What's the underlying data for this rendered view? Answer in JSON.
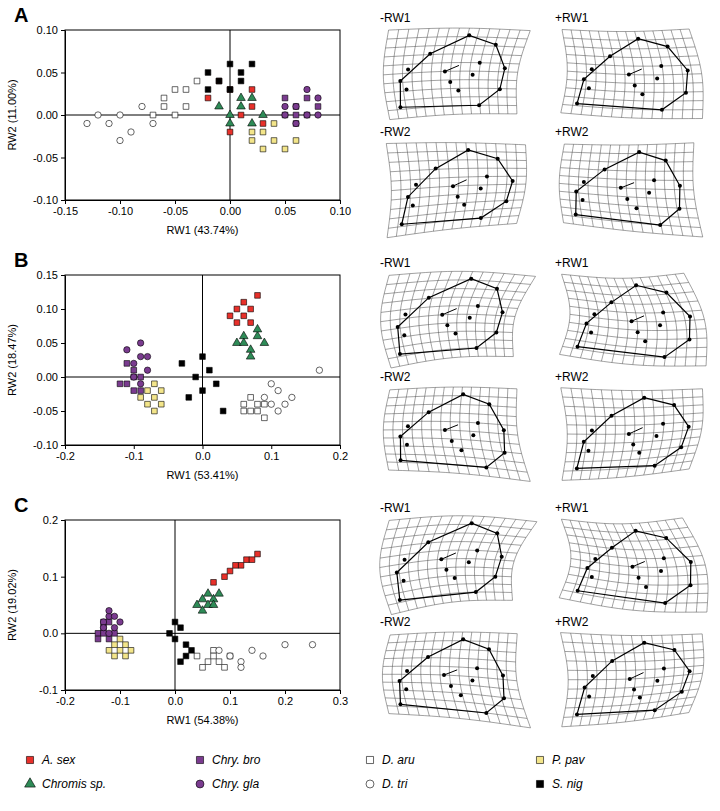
{
  "chart_data": [
    {
      "type": "scatter",
      "title": "A",
      "x_label": "RW1 (43.74%)",
      "y_label": "RW2 (11.00%)",
      "annotations": [
        "-RW1",
        "+RW1",
        "-RW2",
        "+RW2"
      ],
      "legend": "bottom",
      "xlim": [
        -0.15,
        0.1
      ],
      "xticks": [
        -0.15,
        {
          "value": -0.1,
          "label": "-0.10"
        },
        -0.05,
        {
          "value": 0,
          "label": "0.00"
        },
        0.05,
        {
          "value": 0.1,
          "label": "0.10"
        }
      ],
      "ylim": [
        -0.1,
        0.1
      ],
      "yticks": [
        {
          "value": -0.1,
          "label": "-0.10"
        },
        -0.05,
        {
          "value": 0,
          "label": "0.00"
        },
        0.05,
        {
          "value": 0.1,
          "label": "0.10"
        }
      ],
      "series": [
        {
          "name": "A. sex",
          "color": "#e8302a",
          "marker": "square",
          "x": [
            -0.02,
            0.0,
            0.01,
            0.02,
            -0.01,
            0.03,
            0.0,
            0.02
          ],
          "y": [
            0.02,
            0.03,
            0.0,
            0.01,
            0.04,
            -0.01,
            -0.02,
            0.03
          ]
        },
        {
          "name": "Chromis sp.",
          "color": "#2e8b57",
          "marker": "triangle",
          "x": [
            0.0,
            0.01,
            0.02,
            -0.01,
            0.03,
            0.01,
            0.02,
            0.0
          ],
          "y": [
            0.0,
            0.01,
            -0.01,
            0.01,
            0.0,
            0.02,
            0.02,
            -0.01
          ]
        },
        {
          "name": "Chry. bro",
          "color": "#7a3b8f",
          "marker": "square",
          "x": [
            0.05,
            0.06,
            0.07,
            0.06,
            0.08,
            0.05,
            0.07,
            0.06
          ],
          "y": [
            0.0,
            0.01,
            0.0,
            -0.01,
            0.01,
            0.02,
            0.02,
            0.0
          ]
        },
        {
          "name": "Chry. gla",
          "color": "#7a3b8f",
          "marker": "circle",
          "x": [
            0.06,
            0.07,
            0.08,
            0.05,
            0.07,
            0.06,
            0.08,
            0.05
          ],
          "y": [
            0.01,
            0.0,
            0.02,
            0.0,
            0.03,
            -0.01,
            0.0,
            0.01
          ]
        },
        {
          "name": "D. aru",
          "color": "#ffffff",
          "marker": "square",
          "x": [
            -0.07,
            -0.06,
            -0.05,
            -0.04,
            -0.03,
            -0.05,
            -0.06,
            -0.04
          ],
          "y": [
            0.0,
            0.02,
            0.03,
            0.01,
            0.04,
            0.0,
            0.01,
            0.03
          ]
        },
        {
          "name": "D. tri",
          "color": "#ffffff",
          "marker": "circle",
          "x": [
            -0.13,
            -0.11,
            -0.1,
            -0.09,
            -0.08,
            -0.1,
            -0.12,
            -0.07
          ],
          "y": [
            -0.01,
            -0.01,
            0.0,
            -0.02,
            0.01,
            -0.03,
            0.0,
            -0.01
          ]
        },
        {
          "name": "P. pav",
          "color": "#f3e58a",
          "marker": "square",
          "x": [
            0.02,
            0.03,
            0.04,
            0.03,
            0.05,
            0.02,
            0.04,
            0.06
          ],
          "y": [
            -0.03,
            -0.04,
            -0.03,
            -0.02,
            -0.04,
            -0.02,
            -0.01,
            -0.03
          ]
        },
        {
          "name": "S. nig",
          "color": "#000000",
          "marker": "square",
          "x": [
            -0.02,
            -0.01,
            0.0,
            0.01,
            0.0,
            -0.02,
            0.01,
            0.02
          ],
          "y": [
            0.05,
            0.04,
            0.06,
            0.05,
            0.03,
            0.03,
            0.04,
            0.06
          ]
        }
      ]
    },
    {
      "type": "scatter",
      "title": "B",
      "x_label": "RW1 (53.41%)",
      "y_label": "RW2 (18.47%)",
      "annotations": [
        "-RW1",
        "+RW1",
        "-RW2",
        "+RW2"
      ],
      "xlim": [
        -0.2,
        0.2
      ],
      "xticks": [
        -0.2,
        -0.1,
        {
          "value": 0,
          "label": "0.0"
        },
        0.1,
        0.2
      ],
      "ylim": [
        -0.1,
        0.15
      ],
      "yticks": [
        {
          "value": -0.1,
          "label": "-0.10"
        },
        -0.05,
        {
          "value": 0,
          "label": "0.00"
        },
        0.05,
        {
          "value": 0.1,
          "label": "0.10"
        },
        0.15
      ],
      "series": [
        {
          "name": "A. sex",
          "color": "#e8302a",
          "marker": "square",
          "x": [
            0.04,
            0.05,
            0.06,
            0.07,
            0.08,
            0.05,
            0.06,
            0.07
          ],
          "y": [
            0.09,
            0.1,
            0.11,
            0.1,
            0.12,
            0.08,
            0.09,
            0.08
          ]
        },
        {
          "name": "Chromis sp.",
          "color": "#2e8b57",
          "marker": "triangle",
          "x": [
            0.05,
            0.06,
            0.07,
            0.08,
            0.09,
            0.07,
            0.06,
            0.08
          ],
          "y": [
            0.05,
            0.06,
            0.04,
            0.06,
            0.05,
            0.03,
            0.05,
            0.07
          ]
        },
        {
          "name": "Chry. bro",
          "color": "#7a3b8f",
          "marker": "square",
          "x": [
            -0.11,
            -0.1,
            -0.09,
            -0.12,
            -0.1,
            -0.11,
            -0.09,
            -0.1
          ],
          "y": [
            -0.01,
            0.0,
            -0.02,
            -0.01,
            0.01,
            0.02,
            0.0,
            -0.02
          ]
        },
        {
          "name": "Chry. gla",
          "color": "#7a3b8f",
          "marker": "circle",
          "x": [
            -0.1,
            -0.09,
            -0.08,
            -0.11,
            -0.09,
            -0.1,
            -0.08,
            -0.09
          ],
          "y": [
            0.02,
            0.03,
            0.01,
            0.04,
            0.05,
            0.0,
            0.03,
            -0.01
          ]
        },
        {
          "name": "D. aru",
          "color": "#ffffff",
          "marker": "square",
          "x": [
            0.06,
            0.07,
            0.08,
            0.09,
            0.07,
            0.08,
            0.06,
            0.09
          ],
          "y": [
            -0.04,
            -0.05,
            -0.04,
            -0.06,
            -0.03,
            -0.05,
            -0.05,
            -0.04
          ]
        },
        {
          "name": "D. tri",
          "color": "#ffffff",
          "marker": "circle",
          "x": [
            0.09,
            0.1,
            0.11,
            0.12,
            0.13,
            0.11,
            0.1,
            0.17
          ],
          "y": [
            -0.03,
            -0.04,
            -0.02,
            -0.04,
            -0.03,
            -0.05,
            -0.01,
            0.01
          ]
        },
        {
          "name": "P. pav",
          "color": "#f3e58a",
          "marker": "square",
          "x": [
            -0.08,
            -0.07,
            -0.06,
            -0.08,
            -0.07,
            -0.06,
            -0.09,
            -0.07
          ],
          "y": [
            -0.02,
            -0.03,
            -0.02,
            -0.04,
            -0.05,
            -0.04,
            -0.03,
            -0.01
          ]
        },
        {
          "name": "S. nig",
          "color": "#000000",
          "marker": "square",
          "x": [
            -0.03,
            -0.01,
            0.0,
            0.01,
            0.02,
            -0.02,
            0.0,
            0.03
          ],
          "y": [
            0.02,
            0.0,
            -0.02,
            0.01,
            -0.01,
            -0.03,
            0.03,
            -0.05
          ]
        }
      ]
    },
    {
      "type": "scatter",
      "title": "C",
      "x_label": "RW1 (54.38%)",
      "y_label": "RW2 (19.02%)",
      "annotations": [
        "-RW1",
        "+RW1",
        "-RW2",
        "+RW2"
      ],
      "xlim": [
        -0.2,
        0.3
      ],
      "xticks": [
        -0.2,
        -0.1,
        {
          "value": 0,
          "label": "0.0"
        },
        0.1,
        0.2,
        0.3
      ],
      "ylim": [
        -0.1,
        0.2
      ],
      "yticks": [
        -0.1,
        {
          "value": 0,
          "label": "0.0"
        },
        0.1,
        0.2
      ],
      "series": [
        {
          "name": "A. sex",
          "color": "#e8302a",
          "marker": "square",
          "x": [
            0.07,
            0.09,
            0.1,
            0.12,
            0.13,
            0.14,
            0.15,
            0.11
          ],
          "y": [
            0.09,
            0.1,
            0.11,
            0.12,
            0.13,
            0.13,
            0.14,
            0.12
          ]
        },
        {
          "name": "Chromis sp.",
          "color": "#2e8b57",
          "marker": "triangle",
          "x": [
            0.04,
            0.05,
            0.06,
            0.07,
            0.08,
            0.05,
            0.06,
            0.07
          ],
          "y": [
            0.05,
            0.06,
            0.05,
            0.06,
            0.07,
            0.04,
            0.07,
            0.05
          ]
        },
        {
          "name": "Chry. bro",
          "color": "#7a3b8f",
          "marker": "square",
          "x": [
            -0.14,
            -0.13,
            -0.12,
            -0.13,
            -0.11,
            -0.14,
            -0.12,
            -0.13
          ],
          "y": [
            0.0,
            0.01,
            -0.01,
            0.02,
            0.0,
            -0.01,
            0.02,
            0.0
          ]
        },
        {
          "name": "Chry. gla",
          "color": "#7a3b8f",
          "marker": "circle",
          "x": [
            -0.13,
            -0.12,
            -0.11,
            -0.12,
            -0.1,
            -0.13,
            -0.11,
            -0.12
          ],
          "y": [
            0.02,
            0.03,
            0.01,
            0.04,
            0.02,
            0.01,
            0.03,
            0.0
          ]
        },
        {
          "name": "D. aru",
          "color": "#ffffff",
          "marker": "square",
          "x": [
            0.04,
            0.06,
            0.07,
            0.08,
            0.1,
            0.05,
            0.09,
            0.07
          ],
          "y": [
            -0.04,
            -0.05,
            -0.03,
            -0.05,
            -0.04,
            -0.06,
            -0.06,
            -0.04
          ]
        },
        {
          "name": "D. tri",
          "color": "#ffffff",
          "marker": "circle",
          "x": [
            0.08,
            0.1,
            0.12,
            0.14,
            0.16,
            0.12,
            0.2,
            0.25
          ],
          "y": [
            -0.03,
            -0.04,
            -0.05,
            -0.03,
            -0.04,
            -0.06,
            -0.02,
            -0.02
          ]
        },
        {
          "name": "P. pav",
          "color": "#f3e58a",
          "marker": "square",
          "x": [
            -0.11,
            -0.1,
            -0.09,
            -0.11,
            -0.1,
            -0.08,
            -0.12,
            -0.09
          ],
          "y": [
            -0.02,
            -0.03,
            -0.02,
            -0.04,
            -0.01,
            -0.03,
            -0.03,
            -0.04
          ]
        },
        {
          "name": "S. nig",
          "color": "#000000",
          "marker": "square",
          "x": [
            -0.01,
            0.0,
            0.01,
            0.02,
            0.03,
            0.0,
            0.02,
            0.01
          ],
          "y": [
            0.0,
            -0.01,
            0.01,
            -0.02,
            -0.03,
            0.02,
            -0.04,
            -0.05
          ]
        }
      ]
    }
  ]
}
